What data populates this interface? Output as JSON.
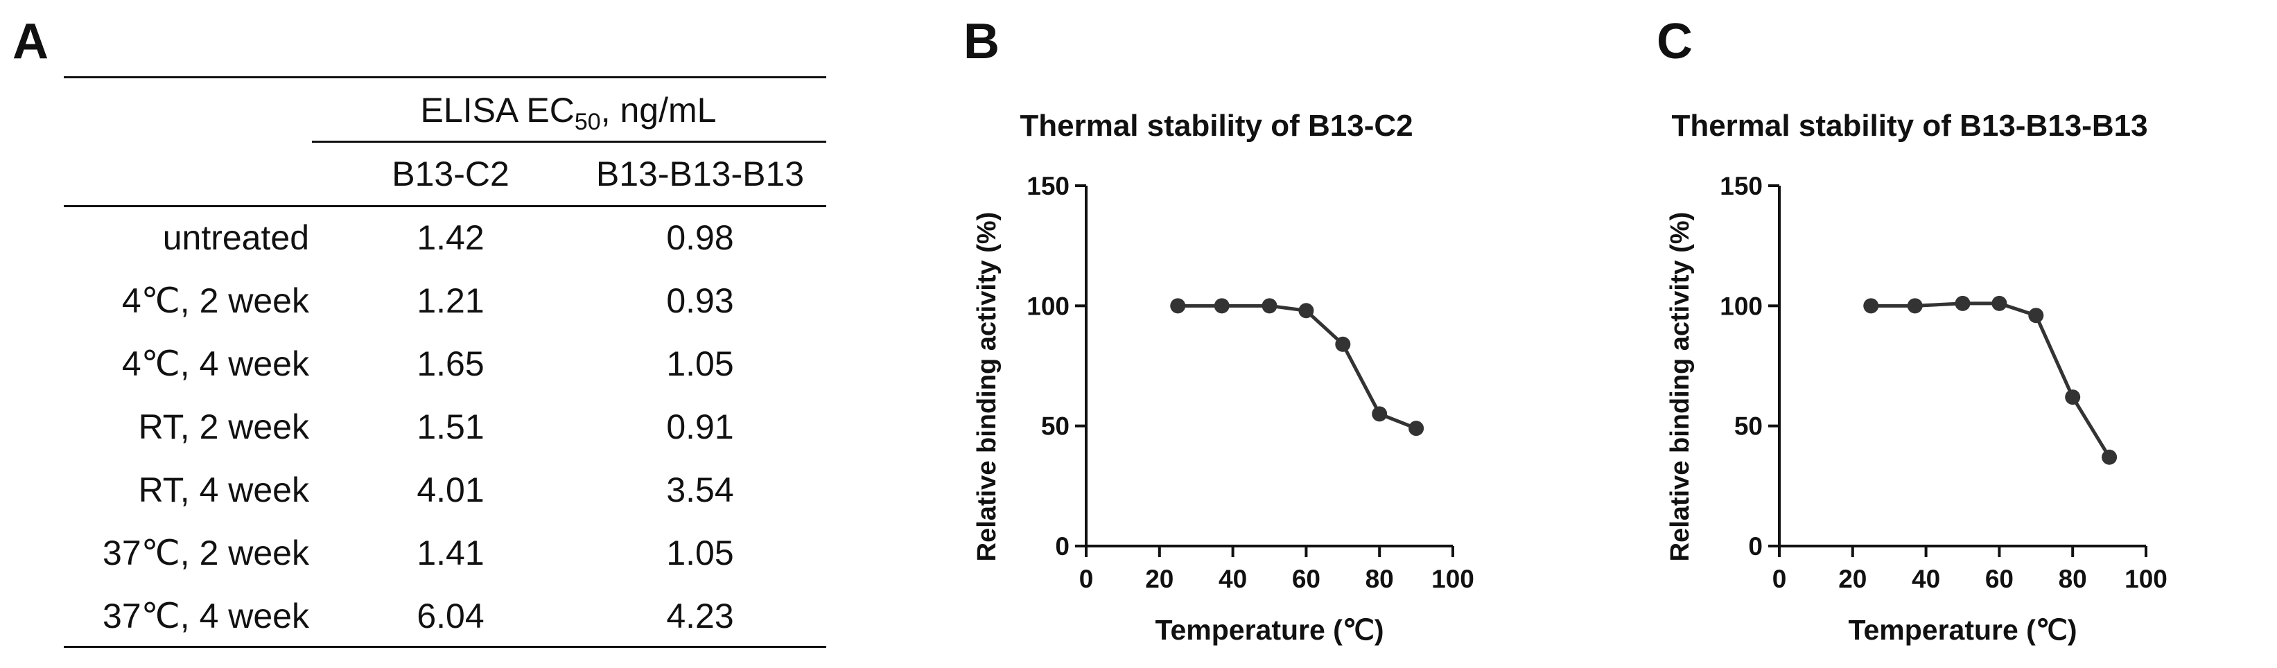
{
  "panel_labels": {
    "a": "A",
    "b": "B",
    "c": "C"
  },
  "table": {
    "title_main": "ELISA EC",
    "title_sub": "50",
    "title_unit": ", ng/mL",
    "columns": [
      "B13-C2",
      "B13-B13-B13"
    ],
    "rows": [
      {
        "condition": "untreated",
        "b13c2": "1.42",
        "b13b13b13": "0.98"
      },
      {
        "condition": "4℃, 2 week",
        "b13c2": "1.21",
        "b13b13b13": "0.93"
      },
      {
        "condition": "4℃, 4 week",
        "b13c2": "1.65",
        "b13b13b13": "1.05"
      },
      {
        "condition": "RT, 2 week",
        "b13c2": "1.51",
        "b13b13b13": "0.91"
      },
      {
        "condition": "RT, 4 week",
        "b13c2": "4.01",
        "b13b13b13": "3.54"
      },
      {
        "condition": "37℃, 2 week",
        "b13c2": "1.41",
        "b13b13b13": "1.05"
      },
      {
        "condition": "37℃, 4 week",
        "b13c2": "6.04",
        "b13b13b13": "4.23"
      }
    ]
  },
  "chart_data": [
    {
      "type": "line",
      "title": "Thermal stability of B13-C2",
      "xlabel": "Temperature (℃)",
      "ylabel": "Relative binding activity (%)",
      "x": [
        25,
        37,
        50,
        60,
        70,
        80,
        90
      ],
      "y": [
        100,
        100,
        100,
        98,
        84,
        55,
        49
      ],
      "xlim": [
        0,
        100
      ],
      "ylim": [
        0,
        150
      ],
      "xticks": [
        0,
        20,
        40,
        60,
        80,
        100
      ],
      "yticks": [
        0,
        50,
        100,
        150
      ],
      "grid": false,
      "color": "#333333"
    },
    {
      "type": "line",
      "title": "Thermal stability of B13-B13-B13",
      "xlabel": "Temperature (℃)",
      "ylabel": "Relative binding activity (%)",
      "x": [
        25,
        37,
        50,
        60,
        70,
        80,
        90
      ],
      "y": [
        100,
        100,
        101,
        101,
        96,
        62,
        37
      ],
      "xlim": [
        0,
        100
      ],
      "ylim": [
        0,
        150
      ],
      "xticks": [
        0,
        20,
        40,
        60,
        80,
        100
      ],
      "yticks": [
        0,
        50,
        100,
        150
      ],
      "grid": false,
      "color": "#333333"
    }
  ]
}
